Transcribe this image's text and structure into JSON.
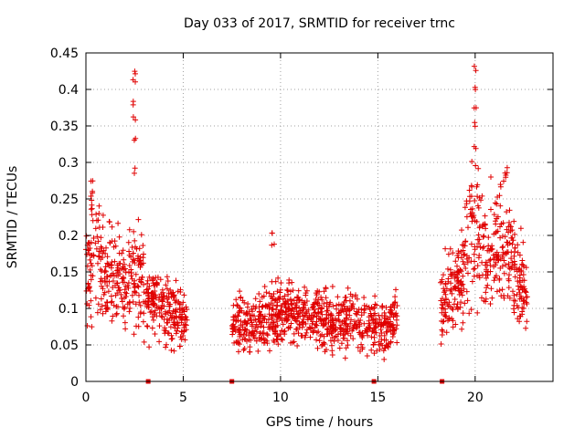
{
  "chart_data": {
    "type": "scatter",
    "title": "Day 033 of 2017, SRMTID for receiver trnc",
    "xlabel": "GPS time / hours",
    "ylabel": "SRMTID / TECUs",
    "xlim": [
      0,
      24
    ],
    "ylim": [
      0,
      0.45
    ],
    "x_ticks": [
      0,
      5,
      10,
      15,
      20
    ],
    "y_ticks": [
      0,
      0.05,
      0.1,
      0.15,
      0.2,
      0.25,
      0.3,
      0.35,
      0.4,
      0.45
    ],
    "x_tick_labels": [
      "0",
      "5",
      "10",
      "15",
      "20"
    ],
    "y_tick_labels": [
      "0",
      "0.05",
      "0.1",
      "0.15",
      "0.2",
      "0.25",
      "0.3",
      "0.35",
      "0.4",
      "0.45"
    ],
    "grid": true,
    "marker": "+",
    "color": "#e00000",
    "zero_markers_x": [
      3.2,
      7.5,
      14.8,
      18.3
    ],
    "series": [
      {
        "name": "",
        "segments": [
          {
            "x_start": 0.0,
            "x_end": 5.2,
            "profile": [
              [
                0.0,
                0.16
              ],
              [
                0.5,
                0.17
              ],
              [
                1.0,
                0.14
              ],
              [
                1.5,
                0.16
              ],
              [
                2.0,
                0.13
              ],
              [
                2.6,
                0.15
              ],
              [
                3.0,
                0.12
              ],
              [
                3.5,
                0.11
              ],
              [
                4.0,
                0.1
              ],
              [
                4.5,
                0.09
              ],
              [
                5.2,
                0.085
              ]
            ]
          },
          {
            "x_start": 7.5,
            "x_end": 16.0,
            "profile": [
              [
                7.5,
                0.075
              ],
              [
                8.5,
                0.08
              ],
              [
                9.5,
                0.09
              ],
              [
                10.5,
                0.095
              ],
              [
                11.5,
                0.09
              ],
              [
                12.5,
                0.085
              ],
              [
                13.5,
                0.08
              ],
              [
                14.5,
                0.08
              ],
              [
                15.3,
                0.07
              ],
              [
                16.0,
                0.09
              ]
            ]
          },
          {
            "x_start": 18.2,
            "x_end": 22.7,
            "profile": [
              [
                18.2,
                0.1
              ],
              [
                18.8,
                0.13
              ],
              [
                19.3,
                0.14
              ],
              [
                19.8,
                0.22
              ],
              [
                20.2,
                0.2
              ],
              [
                20.6,
                0.17
              ],
              [
                21.0,
                0.19
              ],
              [
                21.5,
                0.18
              ],
              [
                22.0,
                0.16
              ],
              [
                22.7,
                0.12
              ]
            ]
          }
        ],
        "peaks": [
          {
            "x": 2.5,
            "values": [
              0.42,
              0.41,
              0.38,
              0.36,
              0.33,
              0.29
            ]
          },
          {
            "x": 20.0,
            "values": [
              0.43,
              0.4,
              0.37,
              0.35,
              0.32
            ]
          },
          {
            "x": 0.3,
            "values": [
              0.27,
              0.26,
              0.25,
              0.24
            ]
          },
          {
            "x": 21.6,
            "values": [
              0.29,
              0.28
            ]
          },
          {
            "x": 9.6,
            "values": [
              0.2,
              0.19
            ]
          }
        ]
      }
    ]
  }
}
